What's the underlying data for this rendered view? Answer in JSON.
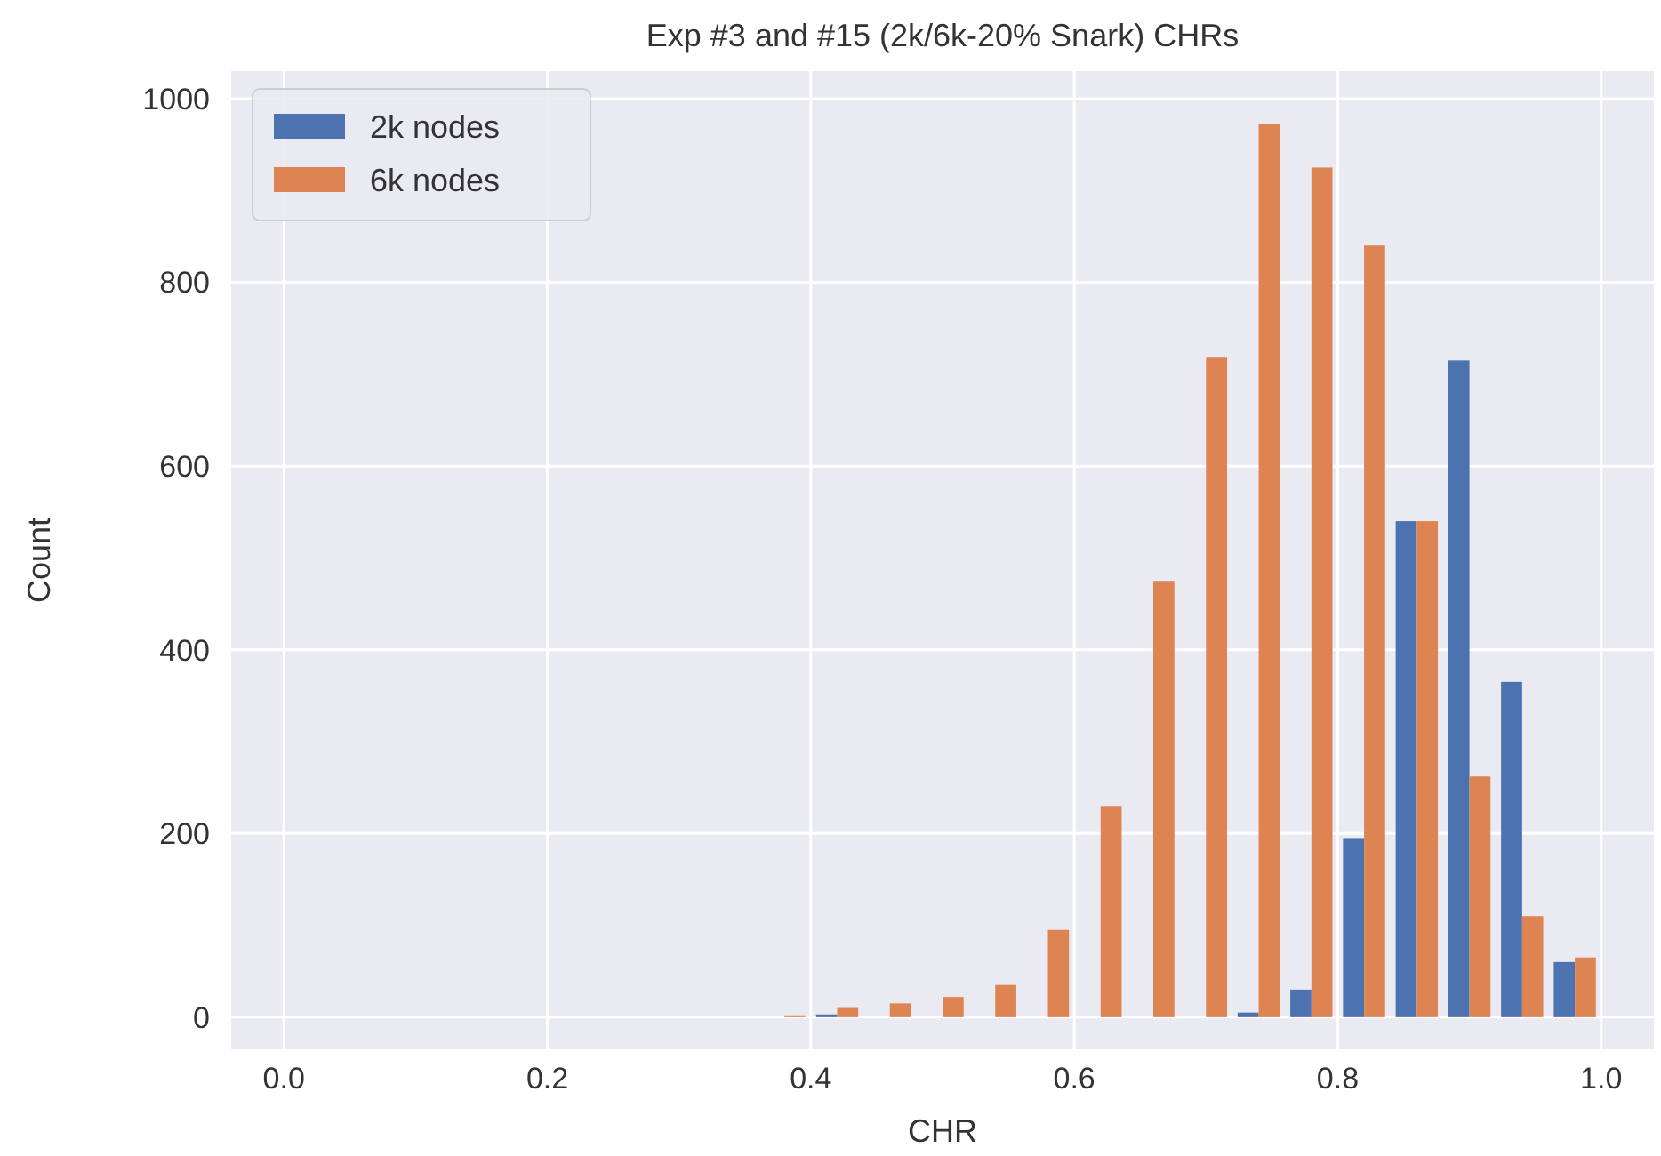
{
  "chart_data": {
    "type": "histogram",
    "title": "Exp #3 and #15 (2k/6k-20% Snark) CHRs",
    "xlabel": "CHR",
    "ylabel": "Count",
    "bins": [
      0,
      0.04,
      0.08,
      0.12,
      0.16,
      0.2,
      0.24,
      0.28,
      0.32,
      0.36,
      0.4,
      0.44,
      0.48,
      0.52,
      0.56,
      0.6,
      0.64,
      0.68,
      0.72,
      0.76,
      0.8,
      0.84,
      0.88,
      0.92,
      0.96,
      1.0
    ],
    "series": [
      {
        "name": "2k nodes",
        "color": "#4c72b0",
        "values": [
          0,
          0,
          0,
          0,
          0,
          0,
          0,
          0,
          0,
          0,
          3,
          0,
          0,
          0,
          0,
          0,
          0,
          0,
          5,
          30,
          195,
          540,
          715,
          365,
          60
        ]
      },
      {
        "name": "6k nodes",
        "color": "#dd8452",
        "values": [
          0,
          0,
          0,
          0,
          0,
          0,
          0,
          0,
          0,
          2,
          10,
          15,
          22,
          35,
          95,
          230,
          475,
          718,
          972,
          925,
          840,
          540,
          262,
          110,
          65
        ]
      }
    ],
    "xlim": [
      -0.04,
      1.04
    ],
    "ylim": [
      -35,
      1030
    ],
    "xticks": [
      {
        "value": 0,
        "label": "0.0"
      },
      {
        "value": 0.2,
        "label": "0.2"
      },
      {
        "value": 0.4,
        "label": "0.4"
      },
      {
        "value": 0.6,
        "label": "0.6"
      },
      {
        "value": 0.8,
        "label": "0.8"
      },
      {
        "value": 1,
        "label": "1.0"
      }
    ],
    "yticks": [
      0,
      200,
      400,
      600,
      800,
      1000
    ],
    "grid": true,
    "legend": "top left"
  }
}
